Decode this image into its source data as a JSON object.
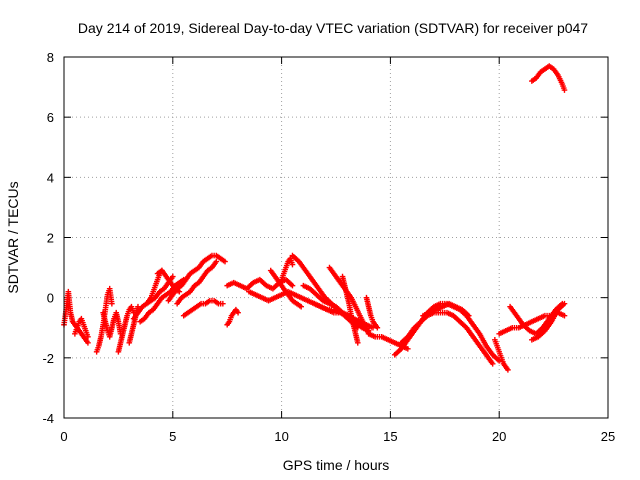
{
  "chart_data": {
    "type": "scatter",
    "title": "Day 214 of 2019, Sidereal Day-to-day VTEC variation (SDTVAR) for receiver p047",
    "xlabel": "GPS time / hours",
    "ylabel": "SDTVAR / TECUs",
    "xlim": [
      0,
      25
    ],
    "ylim": [
      -4,
      8
    ],
    "xticks": [
      "0",
      "5",
      "10",
      "15",
      "20",
      "25"
    ],
    "yticks": [
      "-4",
      "-2",
      "0",
      "2",
      "4",
      "6",
      "8"
    ],
    "grid": true,
    "marker": "+",
    "color": "#ff0000",
    "series": [
      {
        "name": "p047",
        "traces": [
          {
            "x": [
              0.0,
              0.1,
              0.2,
              0.3,
              0.4
            ],
            "y": [
              -0.9,
              -0.4,
              0.2,
              -0.5,
              -0.8
            ]
          },
          {
            "x": [
              0.4,
              0.5,
              0.6,
              0.7,
              0.8,
              0.9,
              1.0,
              1.1
            ],
            "y": [
              -0.8,
              -0.9,
              -1.0,
              -1.1,
              -1.2,
              -1.3,
              -1.4,
              -1.5
            ]
          },
          {
            "x": [
              0.5,
              0.6,
              0.7,
              0.8,
              0.9,
              1.0,
              1.1
            ],
            "y": [
              -1.2,
              -1.0,
              -0.8,
              -0.7,
              -0.9,
              -1.1,
              -1.3
            ]
          },
          {
            "x": [
              1.5,
              1.6,
              1.7,
              1.8,
              1.9,
              2.0,
              2.1,
              2.2
            ],
            "y": [
              -1.8,
              -1.6,
              -1.3,
              -0.9,
              -0.4,
              0.1,
              0.3,
              -0.2
            ]
          },
          {
            "x": [
              1.8,
              1.9,
              2.0,
              2.1,
              2.2,
              2.3,
              2.4,
              2.5,
              2.6
            ],
            "y": [
              -0.5,
              -0.8,
              -1.1,
              -1.3,
              -1.0,
              -0.7,
              -0.5,
              -0.8,
              -1.2
            ]
          },
          {
            "x": [
              2.5,
              2.6,
              2.7,
              2.8,
              2.9,
              3.0,
              3.1,
              3.2
            ],
            "y": [
              -1.8,
              -1.5,
              -1.2,
              -0.9,
              -0.6,
              -0.4,
              -0.3,
              -0.5
            ]
          },
          {
            "x": [
              3.0,
              3.1,
              3.2,
              3.3,
              3.4
            ],
            "y": [
              -1.5,
              -1.2,
              -0.9,
              -0.6,
              -0.3
            ]
          },
          {
            "x": [
              3.2,
              3.4,
              3.6,
              3.8,
              4.0,
              4.2,
              4.4,
              4.6,
              4.8,
              5.0
            ],
            "y": [
              -0.7,
              -0.5,
              -0.3,
              -0.2,
              -0.1,
              0.0,
              0.2,
              0.3,
              0.5,
              0.7
            ]
          },
          {
            "x": [
              3.5,
              3.7,
              3.9,
              4.1,
              4.3,
              4.5,
              4.7,
              4.9,
              5.1,
              5.3,
              5.5
            ],
            "y": [
              -0.8,
              -0.7,
              -0.5,
              -0.4,
              -0.2,
              0.0,
              0.1,
              0.2,
              0.4,
              0.5,
              0.6
            ]
          },
          {
            "x": [
              3.8,
              3.9,
              4.0,
              4.1,
              4.2,
              4.3,
              4.4,
              4.5
            ],
            "y": [
              -0.2,
              -0.1,
              0.0,
              0.2,
              0.4,
              0.6,
              0.8,
              0.9
            ]
          },
          {
            "x": [
              4.3,
              4.5,
              4.7,
              4.9,
              5.1,
              5.3
            ],
            "y": [
              0.8,
              0.9,
              0.7,
              0.5,
              0.3,
              0.2
            ]
          },
          {
            "x": [
              4.8,
              5.0,
              5.2,
              5.4,
              5.6,
              5.8,
              6.0,
              6.2,
              6.4,
              6.6,
              6.8,
              7.0,
              7.2,
              7.4
            ],
            "y": [
              -0.1,
              0.1,
              0.3,
              0.4,
              0.6,
              0.8,
              0.9,
              1.0,
              1.2,
              1.3,
              1.4,
              1.4,
              1.3,
              1.2
            ]
          },
          {
            "x": [
              5.2,
              5.4,
              5.6,
              5.8,
              6.0,
              6.2,
              6.4,
              6.6,
              6.8,
              7.0
            ],
            "y": [
              -0.2,
              0.0,
              0.1,
              0.2,
              0.4,
              0.5,
              0.7,
              0.9,
              1.0,
              1.2
            ]
          },
          {
            "x": [
              5.5,
              5.7,
              5.9,
              6.1,
              6.3,
              6.5,
              6.7,
              6.9,
              7.1,
              7.3
            ],
            "y": [
              -0.6,
              -0.5,
              -0.4,
              -0.3,
              -0.2,
              -0.2,
              -0.1,
              -0.1,
              -0.2,
              -0.2
            ]
          },
          {
            "x": [
              7.5,
              7.6,
              7.7,
              7.8,
              7.9,
              8.0
            ],
            "y": [
              -0.9,
              -0.8,
              -0.6,
              -0.5,
              -0.4,
              -0.5
            ]
          },
          {
            "x": [
              7.5,
              7.8,
              8.1,
              8.4,
              8.7,
              9.0,
              9.3,
              9.6,
              9.9,
              10.2,
              10.5
            ],
            "y": [
              0.4,
              0.5,
              0.4,
              0.3,
              0.5,
              0.6,
              0.4,
              0.3,
              0.5,
              0.6,
              0.4
            ]
          },
          {
            "x": [
              8.5,
              8.8,
              9.1,
              9.4,
              9.7,
              10.0,
              10.3,
              10.6,
              10.9,
              11.2,
              11.5,
              11.8,
              12.1,
              12.4,
              12.7,
              13.0,
              13.3,
              13.6
            ],
            "y": [
              0.2,
              0.1,
              0.0,
              -0.1,
              0.0,
              0.1,
              0.2,
              0.1,
              0.0,
              -0.1,
              -0.2,
              -0.3,
              -0.4,
              -0.4,
              -0.5,
              -0.6,
              -0.7,
              -0.8
            ]
          },
          {
            "x": [
              9.5,
              9.7,
              9.9,
              10.1,
              10.3,
              10.5,
              10.7,
              10.9
            ],
            "y": [
              0.9,
              0.7,
              0.5,
              0.3,
              0.1,
              -0.1,
              -0.2,
              -0.3
            ]
          },
          {
            "x": [
              10.0,
              10.1,
              10.2,
              10.3,
              10.4,
              10.5
            ],
            "y": [
              0.6,
              0.8,
              1.0,
              1.2,
              1.3,
              1.1
            ]
          },
          {
            "x": [
              10.5,
              10.8,
              11.1,
              11.4,
              11.7,
              12.0,
              12.3,
              12.6,
              12.9,
              13.2,
              13.5
            ],
            "y": [
              1.4,
              1.2,
              0.9,
              0.6,
              0.3,
              0.0,
              -0.2,
              -0.4,
              -0.6,
              -0.8,
              -1.0
            ]
          },
          {
            "x": [
              11.0,
              11.3,
              11.6,
              11.9,
              12.2,
              12.5,
              12.8,
              13.1,
              13.4,
              13.7,
              14.0
            ],
            "y": [
              0.4,
              0.3,
              0.1,
              -0.1,
              -0.2,
              -0.3,
              -0.5,
              -0.6,
              -0.8,
              -1.0,
              -1.1
            ]
          },
          {
            "x": [
              11.5,
              11.8,
              12.1,
              12.4,
              12.7,
              13.0,
              13.3,
              13.6,
              13.9,
              14.2
            ],
            "y": [
              -0.2,
              -0.3,
              -0.4,
              -0.5,
              -0.5,
              -0.6,
              -0.7,
              -0.8,
              -0.9,
              -1.0
            ]
          },
          {
            "x": [
              12.2,
              12.4,
              12.6,
              12.8,
              13.0,
              13.2,
              13.4,
              13.6,
              13.8,
              14.0
            ],
            "y": [
              1.0,
              0.8,
              0.6,
              0.4,
              0.2,
              0.0,
              -0.3,
              -0.6,
              -0.9,
              -1.2
            ]
          },
          {
            "x": [
              12.8,
              12.9,
              13.0,
              13.1,
              13.2,
              13.3,
              13.4,
              13.5
            ],
            "y": [
              0.7,
              0.4,
              0.1,
              -0.2,
              -0.6,
              -0.9,
              -1.2,
              -1.5
            ]
          },
          {
            "x": [
              13.9,
              14.0,
              14.1,
              14.2,
              14.3,
              14.4
            ],
            "y": [
              0.0,
              -0.3,
              -0.6,
              -0.8,
              -0.9,
              -1.0
            ]
          },
          {
            "x": [
              14.0,
              14.3,
              14.6,
              14.9,
              15.2,
              15.5,
              15.8
            ],
            "y": [
              -1.2,
              -1.3,
              -1.3,
              -1.4,
              -1.5,
              -1.6,
              -1.7
            ]
          },
          {
            "x": [
              15.2,
              15.5,
              15.8,
              16.1,
              16.4,
              16.7,
              17.0,
              17.3,
              17.6,
              17.9,
              18.2,
              18.5,
              18.8,
              19.1,
              19.4,
              19.7,
              20.0
            ],
            "y": [
              -1.9,
              -1.7,
              -1.4,
              -1.1,
              -0.8,
              -0.5,
              -0.3,
              -0.2,
              -0.2,
              -0.3,
              -0.4,
              -0.6,
              -0.9,
              -1.2,
              -1.6,
              -1.9,
              -2.1
            ]
          },
          {
            "x": [
              15.5,
              15.8,
              16.1,
              16.4,
              16.7,
              17.0,
              17.3,
              17.6,
              17.9,
              18.2,
              18.5,
              18.8,
              19.1,
              19.4,
              19.7
            ],
            "y": [
              -1.5,
              -1.3,
              -1.0,
              -0.8,
              -0.6,
              -0.5,
              -0.5,
              -0.5,
              -0.6,
              -0.8,
              -1.0,
              -1.3,
              -1.6,
              -1.9,
              -2.2
            ]
          },
          {
            "x": [
              16.5,
              16.8,
              17.1,
              17.4,
              17.7,
              18.0,
              18.3,
              18.6
            ],
            "y": [
              -0.6,
              -0.5,
              -0.4,
              -0.3,
              -0.2,
              -0.3,
              -0.4,
              -0.6
            ]
          },
          {
            "x": [
              19.8,
              19.9,
              20.0,
              20.1,
              20.2,
              20.3,
              20.4
            ],
            "y": [
              -1.4,
              -1.6,
              -1.8,
              -2.0,
              -2.2,
              -2.3,
              -2.4
            ]
          },
          {
            "x": [
              20.0,
              20.3,
              20.6,
              20.9,
              21.2,
              21.5,
              21.8,
              22.1,
              22.4,
              22.7,
              23.0
            ],
            "y": [
              -1.2,
              -1.1,
              -1.0,
              -1.0,
              -0.9,
              -0.8,
              -0.7,
              -0.6,
              -0.6,
              -0.5,
              -0.6
            ]
          },
          {
            "x": [
              20.5,
              20.8,
              21.1,
              21.4,
              21.7,
              22.0,
              22.3,
              22.6,
              22.9
            ],
            "y": [
              -0.3,
              -0.6,
              -0.9,
              -1.1,
              -1.2,
              -1.0,
              -0.7,
              -0.4,
              -0.2
            ]
          },
          {
            "x": [
              21.5,
              21.8,
              22.1,
              22.4,
              22.7,
              23.0
            ],
            "y": [
              -1.4,
              -1.3,
              -1.1,
              -0.8,
              -0.4,
              -0.2
            ]
          },
          {
            "x": [
              21.5,
              21.7,
              21.9,
              22.1,
              22.3,
              22.5,
              22.7,
              22.9,
              23.0
            ],
            "y": [
              7.2,
              7.3,
              7.5,
              7.6,
              7.7,
              7.6,
              7.4,
              7.1,
              6.9
            ]
          }
        ]
      }
    ]
  }
}
